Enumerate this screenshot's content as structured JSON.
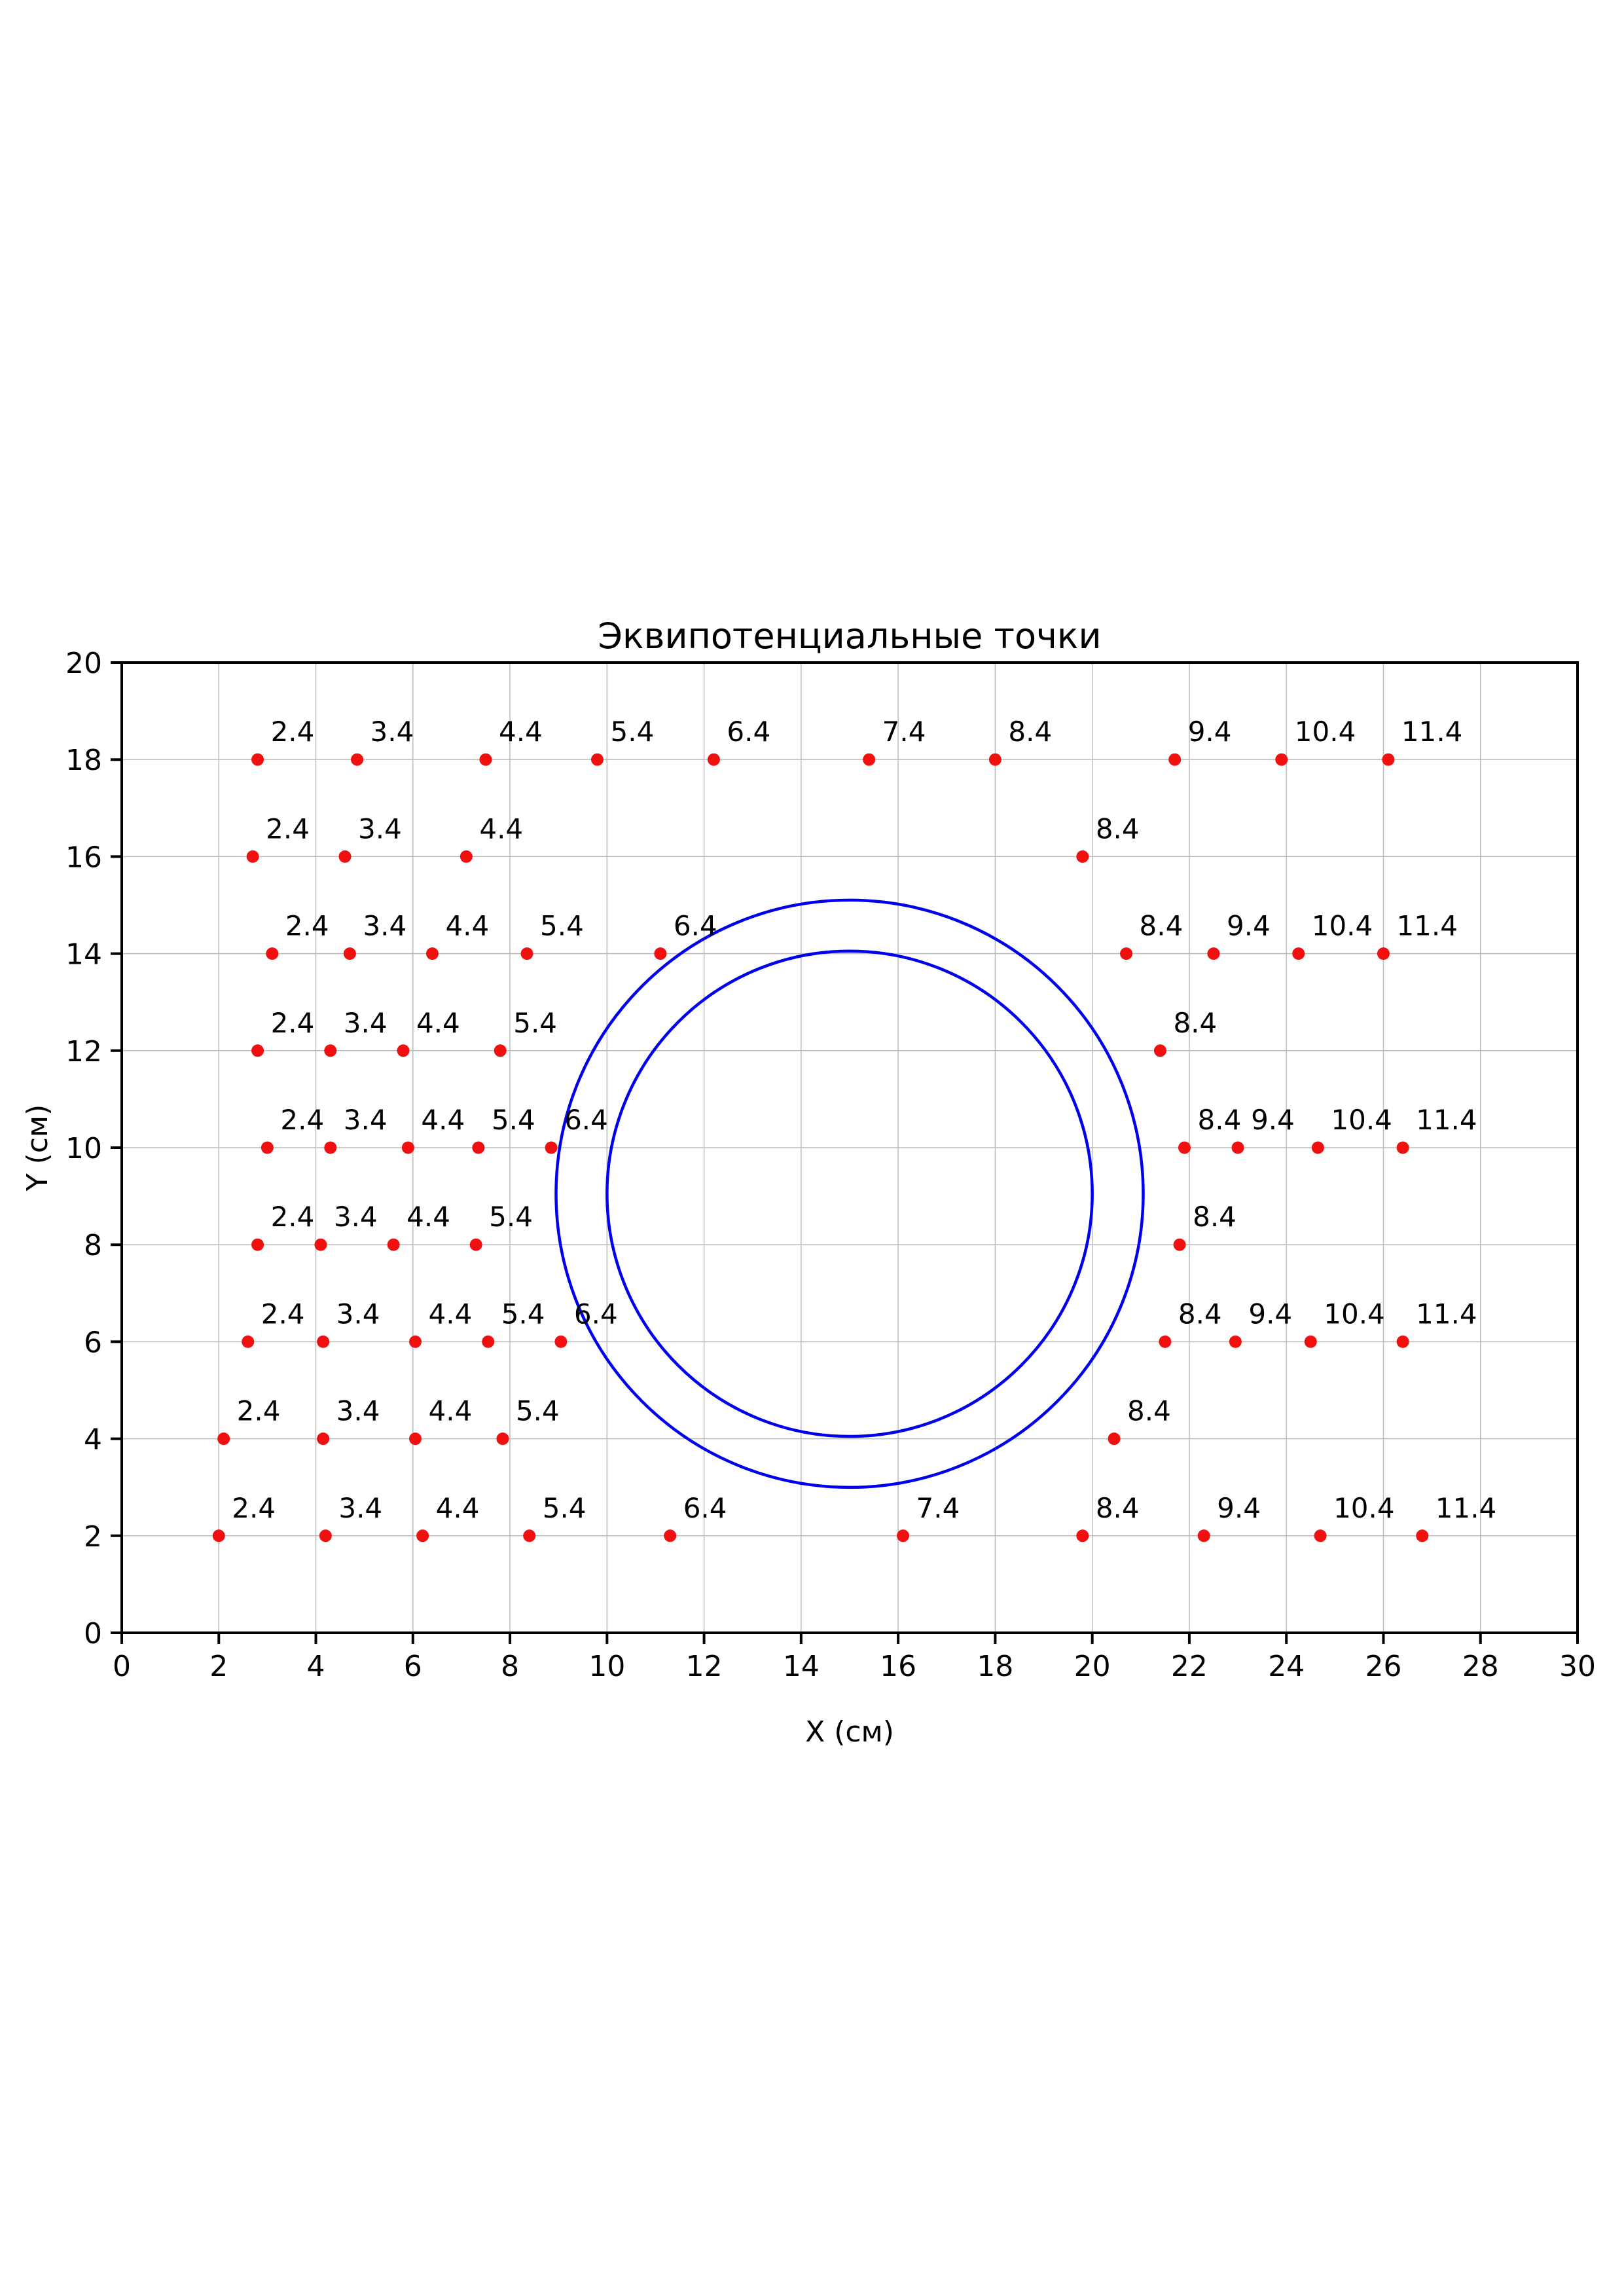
{
  "figure": {
    "title": "Эквипотенциальные точки",
    "background": "#ffffff"
  },
  "chart_data": {
    "type": "scatter",
    "title": "Эквипотенциальные точки",
    "xlabel": "X (см)",
    "ylabel": "Y (см)",
    "xlim": [
      0,
      30
    ],
    "ylim": [
      0,
      20
    ],
    "xticks": [
      0,
      2,
      4,
      6,
      8,
      10,
      12,
      14,
      16,
      18,
      20,
      22,
      24,
      26,
      28,
      30
    ],
    "yticks": [
      0,
      2,
      4,
      6,
      8,
      10,
      12,
      14,
      16,
      18,
      20
    ],
    "grid": true,
    "grid_color": "#bbbbbb",
    "point_color": "#f01010",
    "circle_color": "#0000ee",
    "label_color": "#000000",
    "circles": [
      {
        "cx": 15.0,
        "cy": 9.05,
        "r": 5.0
      },
      {
        "cx": 15.0,
        "cy": 9.05,
        "r": 6.05
      }
    ],
    "points": [
      {
        "x": 2.8,
        "y": 18,
        "label": "2.4"
      },
      {
        "x": 4.85,
        "y": 18,
        "label": "3.4"
      },
      {
        "x": 7.5,
        "y": 18,
        "label": "4.4"
      },
      {
        "x": 9.8,
        "y": 18,
        "label": "5.4"
      },
      {
        "x": 12.2,
        "y": 18,
        "label": "6.4"
      },
      {
        "x": 15.4,
        "y": 18,
        "label": "7.4"
      },
      {
        "x": 18.0,
        "y": 18,
        "label": "8.4"
      },
      {
        "x": 21.7,
        "y": 18,
        "label": "9.4"
      },
      {
        "x": 23.9,
        "y": 18,
        "label": "10.4"
      },
      {
        "x": 26.1,
        "y": 18,
        "label": "11.4"
      },
      {
        "x": 2.7,
        "y": 16,
        "label": "2.4"
      },
      {
        "x": 4.6,
        "y": 16,
        "label": "3.4"
      },
      {
        "x": 7.1,
        "y": 16,
        "label": "4.4"
      },
      {
        "x": 19.8,
        "y": 16,
        "label": "8.4"
      },
      {
        "x": 3.1,
        "y": 14,
        "label": "2.4"
      },
      {
        "x": 4.7,
        "y": 14,
        "label": "3.4"
      },
      {
        "x": 6.4,
        "y": 14,
        "label": "4.4"
      },
      {
        "x": 8.35,
        "y": 14,
        "label": "5.4"
      },
      {
        "x": 11.1,
        "y": 14,
        "label": "6.4"
      },
      {
        "x": 20.7,
        "y": 14,
        "label": "8.4"
      },
      {
        "x": 22.5,
        "y": 14,
        "label": "9.4"
      },
      {
        "x": 24.25,
        "y": 14,
        "label": "10.4"
      },
      {
        "x": 26.0,
        "y": 14,
        "label": "11.4"
      },
      {
        "x": 2.8,
        "y": 12,
        "label": "2.4"
      },
      {
        "x": 4.3,
        "y": 12,
        "label": "3.4"
      },
      {
        "x": 5.8,
        "y": 12,
        "label": "4.4"
      },
      {
        "x": 7.8,
        "y": 12,
        "label": "5.4"
      },
      {
        "x": 21.4,
        "y": 12,
        "label": "8.4"
      },
      {
        "x": 3.0,
        "y": 10,
        "label": "2.4"
      },
      {
        "x": 4.3,
        "y": 10,
        "label": "3.4"
      },
      {
        "x": 5.9,
        "y": 10,
        "label": "4.4"
      },
      {
        "x": 7.35,
        "y": 10,
        "label": "5.4"
      },
      {
        "x": 8.85,
        "y": 10,
        "label": "6.4"
      },
      {
        "x": 21.9,
        "y": 10,
        "label": "8.4"
      },
      {
        "x": 23.0,
        "y": 10,
        "label": "9.4"
      },
      {
        "x": 24.65,
        "y": 10,
        "label": "10.4"
      },
      {
        "x": 26.4,
        "y": 10,
        "label": "11.4"
      },
      {
        "x": 2.8,
        "y": 8,
        "label": "2.4"
      },
      {
        "x": 4.1,
        "y": 8,
        "label": "3.4"
      },
      {
        "x": 5.6,
        "y": 8,
        "label": "4.4"
      },
      {
        "x": 7.3,
        "y": 8,
        "label": "5.4"
      },
      {
        "x": 21.8,
        "y": 8,
        "label": "8.4"
      },
      {
        "x": 2.6,
        "y": 6,
        "label": "2.4"
      },
      {
        "x": 4.15,
        "y": 6,
        "label": "3.4"
      },
      {
        "x": 6.05,
        "y": 6,
        "label": "4.4"
      },
      {
        "x": 7.55,
        "y": 6,
        "label": "5.4"
      },
      {
        "x": 9.05,
        "y": 6,
        "label": "6.4"
      },
      {
        "x": 21.5,
        "y": 6,
        "label": "8.4"
      },
      {
        "x": 22.95,
        "y": 6,
        "label": "9.4"
      },
      {
        "x": 24.5,
        "y": 6,
        "label": "10.4"
      },
      {
        "x": 26.4,
        "y": 6,
        "label": "11.4"
      },
      {
        "x": 2.1,
        "y": 4,
        "label": "2.4"
      },
      {
        "x": 4.15,
        "y": 4,
        "label": "3.4"
      },
      {
        "x": 6.05,
        "y": 4,
        "label": "4.4"
      },
      {
        "x": 7.85,
        "y": 4,
        "label": "5.4"
      },
      {
        "x": 20.45,
        "y": 4,
        "label": "8.4"
      },
      {
        "x": 2.0,
        "y": 2,
        "label": "2.4"
      },
      {
        "x": 4.2,
        "y": 2,
        "label": "3.4"
      },
      {
        "x": 6.2,
        "y": 2,
        "label": "4.4"
      },
      {
        "x": 8.4,
        "y": 2,
        "label": "5.4"
      },
      {
        "x": 11.3,
        "y": 2,
        "label": "6.4"
      },
      {
        "x": 16.1,
        "y": 2,
        "label": "7.4"
      },
      {
        "x": 19.8,
        "y": 2,
        "label": "8.4"
      },
      {
        "x": 22.3,
        "y": 2,
        "label": "9.4"
      },
      {
        "x": 24.7,
        "y": 2,
        "label": "10.4"
      },
      {
        "x": 26.8,
        "y": 2,
        "label": "11.4"
      }
    ]
  }
}
